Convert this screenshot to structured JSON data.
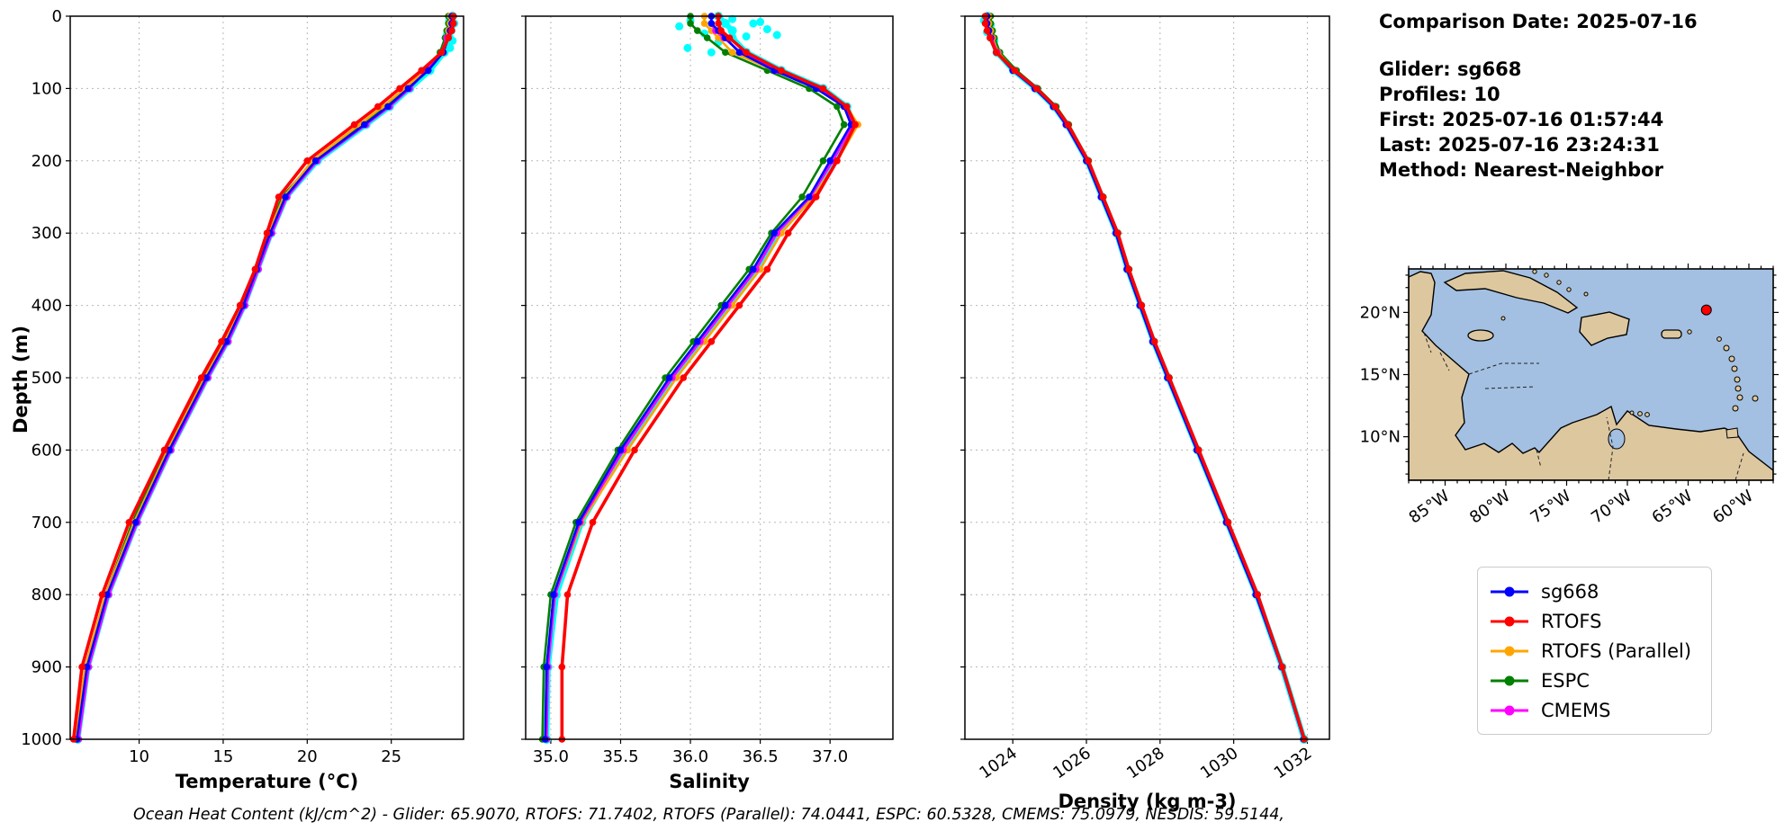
{
  "ylabel": "Depth (m)",
  "info_panel": {
    "comparison_date": "Comparison Date: 2025-07-16",
    "glider": "Glider: sg668",
    "profiles": "Profiles: 10",
    "first": "First: 2025-07-16 01:57:44",
    "last": "Last: 2025-07-16 23:24:31",
    "method": "Method: Nearest-Neighbor"
  },
  "footer": "Ocean Heat Content (kJ/cm^2) - Glider: 65.9070,  RTOFS: 71.7402,  RTOFS (Parallel): 74.0441,  ESPC: 60.5328,  CMEMS: 75.0979,  NESDIS: 59.5144,",
  "legend": {
    "entries": [
      {
        "label": "sg668",
        "color": "#0000ff"
      },
      {
        "label": "RTOFS",
        "color": "#ff0000"
      },
      {
        "label": "RTOFS (Parallel)",
        "color": "#ffa500"
      },
      {
        "label": "ESPC",
        "color": "#008000"
      },
      {
        "label": "CMEMS",
        "color": "#ff00ff"
      }
    ]
  },
  "map": {
    "ocean_color": "#a3c0e2",
    "land_color": "#ddc79f",
    "coast_color": "#000000",
    "lon_range": [
      -88,
      -58
    ],
    "lat_range": [
      6.5,
      23.5
    ],
    "lat_ticks": [
      {
        "label": "20°N",
        "value": 20
      },
      {
        "label": "15°N",
        "value": 15
      },
      {
        "label": "10°N",
        "value": 10
      }
    ],
    "lon_ticks": [
      {
        "label": "85°W",
        "value": -85
      },
      {
        "label": "80°W",
        "value": -80
      },
      {
        "label": "75°W",
        "value": -75
      },
      {
        "label": "70°W",
        "value": -70
      },
      {
        "label": "65°W",
        "value": -65
      },
      {
        "label": "60°W",
        "value": -60
      }
    ],
    "marker": {
      "color": "#ff0000",
      "lon": -63.5,
      "lat": 20.2
    }
  },
  "chart_data": [
    {
      "type": "line",
      "name": "temperature",
      "xlabel": "Temperature (°C)",
      "ylabel": "Depth (m)",
      "xlim": [
        5.9,
        29.3
      ],
      "ylim": [
        0,
        1000
      ],
      "xtick_vals": [
        10,
        15,
        20,
        25
      ],
      "xtick_labels": [
        "10",
        "15",
        "20",
        "25"
      ],
      "ytick_vals": [
        0,
        100,
        200,
        300,
        400,
        500,
        600,
        700,
        800,
        900,
        1000
      ],
      "ytick_labels": [
        "0",
        "100",
        "200",
        "300",
        "400",
        "500",
        "600",
        "700",
        "800",
        "900",
        "1000"
      ],
      "depths": [
        0,
        10,
        20,
        30,
        50,
        75,
        100,
        125,
        150,
        200,
        250,
        300,
        350,
        400,
        450,
        500,
        600,
        700,
        800,
        900,
        1000
      ],
      "scatter": {
        "name": "sg668-raw-surface",
        "color": "#00ffff",
        "points": [
          [
            28.45,
            6
          ],
          [
            28.75,
            10
          ],
          [
            28.55,
            16
          ],
          [
            28.3,
            26
          ],
          [
            28.65,
            34
          ],
          [
            28.5,
            44
          ]
        ]
      },
      "series": [
        {
          "name": "sg668-raw",
          "color": "#00ffff",
          "values": [
            28.65,
            28.65,
            28.55,
            28.45,
            28.15,
            27.3,
            26.1,
            24.9,
            23.5,
            20.6,
            18.75,
            17.85,
            17.05,
            16.25,
            15.25,
            14.05,
            11.85,
            9.85,
            8.15,
            6.95,
            6.35
          ]
        },
        {
          "name": "ESPC",
          "color": "#008000",
          "values": [
            28.4,
            28.4,
            28.3,
            28.2,
            27.9,
            27.1,
            25.9,
            24.6,
            23.2,
            20.4,
            18.5,
            17.7,
            17.0,
            16.1,
            15.0,
            13.8,
            11.6,
            9.6,
            8.0,
            6.8,
            6.2
          ]
        },
        {
          "name": "RTOFS (Parallel)",
          "color": "#ffa500",
          "values": [
            28.5,
            28.5,
            28.4,
            28.3,
            28.0,
            27.0,
            25.8,
            24.5,
            23.1,
            20.3,
            18.6,
            17.7,
            16.9,
            16.1,
            15.1,
            13.9,
            11.7,
            9.7,
            8.0,
            6.8,
            6.2
          ]
        },
        {
          "name": "CMEMS",
          "color": "#ff00ff",
          "values": [
            28.6,
            28.6,
            28.5,
            28.3,
            28.0,
            27.1,
            26.1,
            24.9,
            23.5,
            20.6,
            18.8,
            17.9,
            17.1,
            16.3,
            15.3,
            14.1,
            11.9,
            9.9,
            8.2,
            7.0,
            6.4
          ]
        },
        {
          "name": "sg668",
          "color": "#0000ff",
          "values": [
            28.6,
            28.6,
            28.5,
            28.4,
            28.1,
            27.2,
            26.0,
            24.8,
            23.4,
            20.5,
            18.7,
            17.8,
            17.0,
            16.2,
            15.2,
            14.0,
            11.8,
            9.8,
            8.1,
            6.9,
            6.3
          ]
        },
        {
          "name": "RTOFS",
          "color": "#ff0000",
          "values": [
            28.7,
            28.7,
            28.6,
            28.4,
            28.0,
            26.8,
            25.5,
            24.2,
            22.8,
            20.0,
            18.3,
            17.6,
            16.9,
            16.0,
            14.9,
            13.7,
            11.5,
            9.4,
            7.8,
            6.6,
            6.1
          ]
        }
      ]
    },
    {
      "type": "line",
      "name": "salinity",
      "xlabel": "Salinity",
      "ylabel": "Depth (m)",
      "xlim": [
        34.82,
        37.45
      ],
      "ylim": [
        0,
        1000
      ],
      "xtick_vals": [
        35.0,
        35.5,
        36.0,
        36.5,
        37.0
      ],
      "xtick_labels": [
        "35.0",
        "35.5",
        "36.0",
        "36.5",
        "37.0"
      ],
      "ytick_vals": [
        0,
        100,
        200,
        300,
        400,
        500,
        600,
        700,
        800,
        900,
        1000
      ],
      "depths": [
        0,
        10,
        20,
        30,
        50,
        75,
        100,
        125,
        150,
        200,
        250,
        300,
        350,
        400,
        450,
        500,
        600,
        700,
        800,
        900,
        1000
      ],
      "scatter": {
        "name": "sg668-raw-surface",
        "color": "#00ffff",
        "points": [
          [
            36.0,
            6
          ],
          [
            36.3,
            4
          ],
          [
            36.45,
            10
          ],
          [
            35.92,
            14
          ],
          [
            36.55,
            18
          ],
          [
            36.1,
            24
          ],
          [
            36.4,
            28
          ],
          [
            36.2,
            36
          ],
          [
            35.98,
            44
          ],
          [
            36.5,
            8
          ],
          [
            36.62,
            26
          ],
          [
            36.15,
            50
          ]
        ]
      },
      "series": [
        {
          "name": "sg668-raw",
          "color": "#00ffff",
          "values": [
            36.2,
            36.25,
            36.3,
            36.3,
            36.4,
            36.65,
            36.95,
            37.12,
            37.17,
            37.02,
            36.87,
            36.62,
            36.47,
            36.27,
            36.07,
            35.87,
            35.52,
            35.22,
            35.04,
            34.98,
            34.97
          ]
        },
        {
          "name": "ESPC",
          "color": "#008000",
          "values": [
            36.0,
            36.0,
            36.05,
            36.12,
            36.25,
            36.55,
            36.85,
            37.05,
            37.1,
            36.95,
            36.8,
            36.58,
            36.42,
            36.22,
            36.02,
            35.82,
            35.48,
            35.18,
            35.0,
            34.95,
            34.94
          ]
        },
        {
          "name": "RTOFS (Parallel)",
          "color": "#ffa500",
          "values": [
            36.1,
            36.1,
            36.15,
            36.2,
            36.3,
            36.6,
            36.9,
            37.12,
            37.2,
            37.05,
            36.88,
            36.65,
            36.5,
            36.3,
            36.1,
            35.9,
            35.55,
            35.22,
            35.03,
            34.98,
            34.97
          ]
        },
        {
          "name": "CMEMS",
          "color": "#ff00ff",
          "values": [
            36.15,
            36.15,
            36.18,
            36.24,
            36.36,
            36.62,
            36.92,
            37.1,
            37.16,
            37.02,
            36.86,
            36.62,
            36.47,
            36.27,
            36.07,
            35.87,
            35.52,
            35.21,
            35.03,
            34.98,
            34.97
          ]
        },
        {
          "name": "sg668",
          "color": "#0000ff",
          "values": [
            36.15,
            36.15,
            36.2,
            36.25,
            36.35,
            36.6,
            36.9,
            37.1,
            37.15,
            37.0,
            36.85,
            36.6,
            36.45,
            36.25,
            36.05,
            35.85,
            35.5,
            35.2,
            35.02,
            34.97,
            34.96
          ]
        },
        {
          "name": "RTOFS",
          "color": "#ff0000",
          "values": [
            36.2,
            36.2,
            36.22,
            36.28,
            36.4,
            36.65,
            36.95,
            37.12,
            37.18,
            37.05,
            36.9,
            36.7,
            36.55,
            36.35,
            36.15,
            35.95,
            35.6,
            35.3,
            35.12,
            35.08,
            35.08
          ]
        }
      ]
    },
    {
      "type": "line",
      "name": "density",
      "xlabel": "Density (kg m-3)",
      "ylabel": "Depth (m)",
      "xlim": [
        1022.7,
        1032.6
      ],
      "ylim": [
        0,
        1000
      ],
      "xtick_vals": [
        1024,
        1026,
        1028,
        1030,
        1032
      ],
      "xtick_labels": [
        "1024",
        "1026",
        "1028",
        "1030",
        "1032"
      ],
      "ytick_vals": [
        0,
        100,
        200,
        300,
        400,
        500,
        600,
        700,
        800,
        900,
        1000
      ],
      "depths": [
        0,
        10,
        20,
        30,
        50,
        75,
        100,
        125,
        150,
        200,
        250,
        300,
        350,
        400,
        450,
        500,
        600,
        700,
        800,
        900,
        1000
      ],
      "scatter": {
        "name": "sg668-raw-surface",
        "color": "#00ffff",
        "points": [
          [
            1023.22,
            6
          ],
          [
            1023.4,
            12
          ],
          [
            1023.3,
            22
          ],
          [
            1023.5,
            34
          ]
        ]
      },
      "series": [
        {
          "name": "sg668-raw",
          "color": "#00ffff",
          "values": [
            1023.32,
            1023.32,
            1023.37,
            1023.42,
            1023.57,
            1024.02,
            1024.62,
            1025.12,
            1025.47,
            1026.02,
            1026.42,
            1026.82,
            1027.12,
            1027.47,
            1027.82,
            1028.22,
            1029.02,
            1029.82,
            1030.62,
            1031.31,
            1031.91
          ]
        },
        {
          "name": "ESPC",
          "color": "#008000",
          "values": [
            1023.4,
            1023.4,
            1023.45,
            1023.5,
            1023.65,
            1024.1,
            1024.68,
            1025.18,
            1025.52,
            1026.06,
            1026.46,
            1026.86,
            1027.16,
            1027.5,
            1027.85,
            1028.25,
            1029.04,
            1029.84,
            1030.63,
            1031.31,
            1031.91
          ]
        },
        {
          "name": "RTOFS (Parallel)",
          "color": "#ffa500",
          "values": [
            1023.35,
            1023.35,
            1023.4,
            1023.45,
            1023.6,
            1024.05,
            1024.62,
            1025.12,
            1025.47,
            1026.02,
            1026.42,
            1026.82,
            1027.12,
            1027.47,
            1027.82,
            1028.22,
            1029.02,
            1029.82,
            1030.62,
            1031.3,
            1031.9
          ]
        },
        {
          "name": "CMEMS",
          "color": "#ff00ff",
          "values": [
            1023.3,
            1023.3,
            1023.35,
            1023.42,
            1023.58,
            1024.02,
            1024.6,
            1025.1,
            1025.44,
            1026.0,
            1026.4,
            1026.8,
            1027.1,
            1027.45,
            1027.8,
            1028.2,
            1029.0,
            1029.8,
            1030.6,
            1031.3,
            1031.9
          ]
        },
        {
          "name": "sg668",
          "color": "#0000ff",
          "values": [
            1023.3,
            1023.3,
            1023.35,
            1023.4,
            1023.55,
            1024.0,
            1024.6,
            1025.1,
            1025.45,
            1026.0,
            1026.4,
            1026.8,
            1027.1,
            1027.45,
            1027.8,
            1028.2,
            1029.0,
            1029.8,
            1030.6,
            1031.3,
            1031.9
          ]
        },
        {
          "name": "RTOFS",
          "color": "#ff0000",
          "values": [
            1023.25,
            1023.25,
            1023.3,
            1023.38,
            1023.55,
            1024.05,
            1024.65,
            1025.15,
            1025.5,
            1026.05,
            1026.45,
            1026.85,
            1027.15,
            1027.5,
            1027.85,
            1028.25,
            1029.05,
            1029.85,
            1030.65,
            1031.32,
            1031.92
          ]
        }
      ]
    }
  ]
}
